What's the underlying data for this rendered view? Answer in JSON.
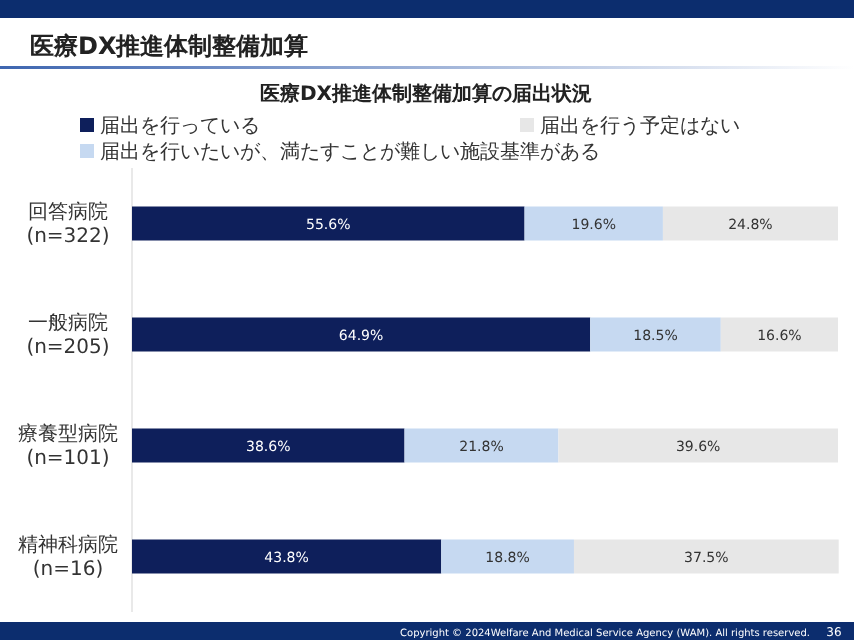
{
  "chart_data": {
    "type": "bar",
    "orientation": "horizontal",
    "stacked": true,
    "title": "医療DX推進体制整備加算",
    "subtitle": "医療DX推進体制整備加算の届出状況",
    "categories": [
      "回答病院\n(n=322)",
      "一般病院\n(n=205)",
      "療養型病院\n(n=101)",
      "精神科病院\n(n=16)"
    ],
    "xlim": [
      0,
      100
    ],
    "tick_labels": "y",
    "legend": "top",
    "series": [
      {
        "name": "届出を行っている",
        "color": "#0e1f5b",
        "values": [
          55.6,
          64.9,
          38.6,
          43.8
        ],
        "value_labels": [
          "55.6%",
          "64.9%",
          "38.6%",
          "43.8%"
        ]
      },
      {
        "name": "届出を行いたいが、満たすことが難しい施設基準がある",
        "color": "#c6d9f1",
        "values": [
          19.6,
          18.5,
          21.8,
          18.8
        ],
        "value_labels": [
          "19.6%",
          "18.5%",
          "21.8%",
          "18.8%"
        ]
      },
      {
        "name": "届出を行う予定はない",
        "color": "#e7e7e7",
        "values": [
          24.8,
          16.6,
          39.6,
          37.5
        ],
        "value_labels": [
          "24.8%",
          "16.6%",
          "39.6%",
          "37.5%"
        ]
      }
    ],
    "annotations": [
      "Copyright © 2024Welfare And Medical Service Agency (WAM). All rights reserved.",
      "36"
    ]
  }
}
